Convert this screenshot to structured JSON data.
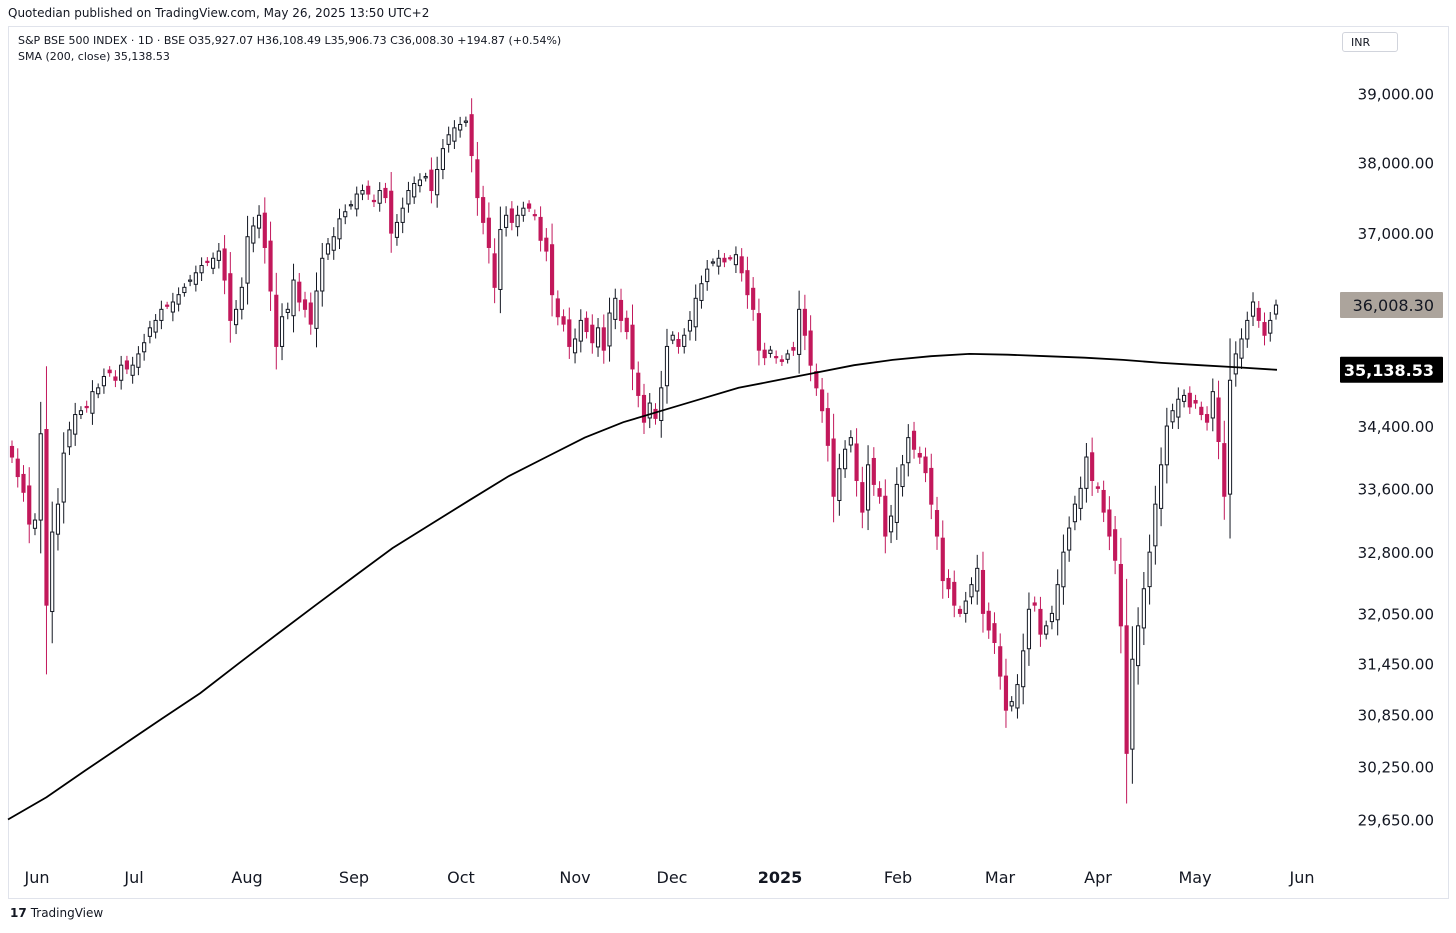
{
  "header": {
    "published": "Quotedian published on TradingView.com, May 26, 2025 13:50 UTC+2"
  },
  "legend": {
    "line1": "S&P BSE 500 INDEX · 1D · BSE  O35,927.07  H36,108.49  L35,906.73  C36,008.30  +194.87 (+0.54%)",
    "line2": "SMA (200, close)  35,138.53"
  },
  "currency": "INR",
  "footer": {
    "brand": "TradingView"
  },
  "colors": {
    "up": "#131722",
    "down": "#c2185b",
    "sma": "#000000",
    "last_price_bg": "#aca49c",
    "sma_badge_bg": "#000000"
  },
  "chart_data": {
    "type": "candlestick",
    "title": "S&P BSE 500 INDEX",
    "y_tick_labels": [
      "39,000.00",
      "38,000.00",
      "37,000.00",
      "34,400.00",
      "33,600.00",
      "32,800.00",
      "32,050.00",
      "31,450.00",
      "30,850.00",
      "30,250.00",
      "29,650.00"
    ],
    "y_tick_values": [
      39000,
      38000,
      37000,
      34400,
      33600,
      32800,
      32050,
      31450,
      30850,
      30250,
      29650
    ],
    "x_tick_labels": [
      "Jun",
      "Jul",
      "Aug",
      "Sep",
      "Oct",
      "Nov",
      "Dec",
      "2025",
      "Feb",
      "Mar",
      "Apr",
      "May",
      "Jun"
    ],
    "last_price": {
      "value": 36008.3,
      "label": "36,008.30"
    },
    "sma_value": {
      "value": 35138.53,
      "label": "35,138.53"
    },
    "scale": "log",
    "close_series": [
      34000,
      33750,
      33550,
      33150,
      33200,
      34300,
      32150,
      33050,
      33400,
      34050,
      34350,
      34550,
      34600,
      34650,
      34850,
      34900,
      35050,
      35100,
      35000,
      35200,
      35150,
      35200,
      35350,
      35500,
      35700,
      35800,
      35950,
      36000,
      36050,
      36150,
      36250,
      36350,
      36450,
      36550,
      36600,
      36650,
      36750,
      36350,
      35800,
      35950,
      36250,
      36950,
      37100,
      37250,
      36800,
      36200,
      35450,
      35850,
      35950,
      36350,
      36050,
      35950,
      35750,
      36200,
      36650,
      36850,
      36950,
      37200,
      37300,
      37400,
      37550,
      37600,
      37550,
      37450,
      37600,
      37500,
      37000,
      37150,
      37350,
      37600,
      37700,
      37750,
      37800,
      37600,
      37900,
      38200,
      38400,
      38500,
      38550,
      38600,
      38100,
      37500,
      37150,
      36800,
      36250,
      37050,
      37250,
      37150,
      37250,
      37350,
      37350,
      37250,
      36900,
      36750,
      36150,
      35850,
      35750,
      35450,
      35550,
      35800,
      35650,
      35500,
      35700,
      35400,
      35900,
      36100,
      35800,
      35650,
      35150,
      34800,
      34450,
      34700,
      34500,
      34900,
      35450,
      35600,
      35450,
      35600,
      35800,
      36100,
      36300,
      36500,
      36600,
      36650,
      36600,
      36650,
      36700,
      36450,
      36150,
      35950,
      35400,
      35300,
      35400,
      35300,
      35250,
      35350,
      35400,
      35950,
      35600,
      35200,
      34900,
      34600,
      34150,
      33500,
      33850,
      34100,
      34250,
      33700,
      33300,
      33900,
      33650,
      33500,
      33000,
      33250,
      33650,
      33900,
      34250,
      34100,
      34000,
      33800,
      33400,
      33000,
      32450,
      32350,
      32150,
      32050,
      32200,
      32400,
      32600,
      32050,
      31850,
      31700,
      31300,
      30900,
      31000,
      31200,
      31600,
      32100,
      32150,
      31800,
      31900,
      32050,
      32400,
      32800,
      33100,
      33400,
      33600,
      34000,
      33700,
      33600,
      33300,
      33000,
      32700,
      31900,
      30400,
      31500,
      31900,
      32350,
      32800,
      33400,
      33900,
      34400,
      34600,
      34750,
      34800,
      34650,
      34700,
      34550,
      34450,
      34850,
      34200,
      33500,
      35000,
      35350,
      35550,
      35800,
      36050,
      35800,
      35600,
      35800,
      36008.3
    ],
    "sma_series": [
      29650,
      29900,
      30200,
      30500,
      30800,
      31100,
      31450,
      31800,
      32150,
      32500,
      32850,
      33150,
      33450,
      33750,
      34000,
      34250,
      34450,
      34600,
      34750,
      34900,
      35000,
      35100,
      35200,
      35270,
      35320,
      35350,
      35340,
      35320,
      35300,
      35270,
      35230,
      35200,
      35170,
      35138.53
    ]
  }
}
